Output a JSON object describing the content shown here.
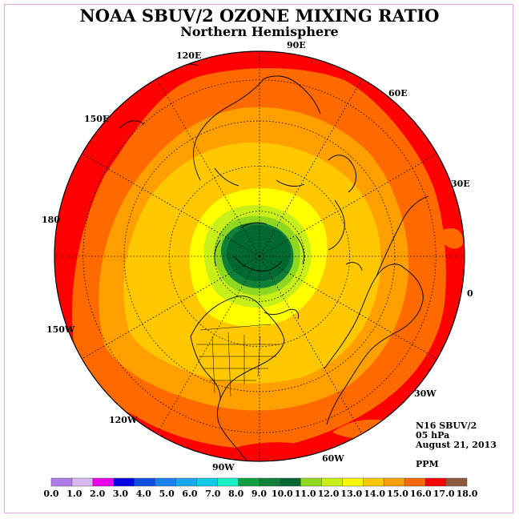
{
  "title": "NOAA SBUV/2 OZONE MIXING RATIO",
  "subtitle": "Northern Hemisphere",
  "longitude_labels": [
    {
      "text": "90E",
      "lon": 90
    },
    {
      "text": "60E",
      "lon": 60
    },
    {
      "text": "30E",
      "lon": 30
    },
    {
      "text": "0",
      "lon": 0
    },
    {
      "text": "30W",
      "lon": -30
    },
    {
      "text": "60W",
      "lon": -60
    },
    {
      "text": "90W",
      "lon": -90
    },
    {
      "text": "120W",
      "lon": -120
    },
    {
      "text": "150W",
      "lon": -150
    },
    {
      "text": "180",
      "lon": 180
    },
    {
      "text": "150E",
      "lon": 150
    },
    {
      "text": "120E",
      "lon": 120
    }
  ],
  "info": {
    "satellite": "N16 SBUV/2",
    "level": "05 hPa",
    "date": "August 21, 2013",
    "units": "PPM"
  },
  "colorbar": {
    "ticks": [
      "0.0",
      "1.0",
      "2.0",
      "3.0",
      "4.0",
      "5.0",
      "6.0",
      "7.0",
      "8.0",
      "9.0",
      "10.0",
      "11.0",
      "12.0",
      "13.0",
      "14.0",
      "15.0",
      "16.0",
      "17.0",
      "18.0"
    ],
    "colors": [
      "#b07be8",
      "#d8b8f0",
      "#e800e8",
      "#0000e0",
      "#1050e0",
      "#1a80f0",
      "#18a8f0",
      "#10c8e8",
      "#18f0c8",
      "#10a040",
      "#108038",
      "#006830",
      "#90d820",
      "#c8f018",
      "#f8f800",
      "#f8c800",
      "#f8a000",
      "#f86800",
      "#f80000",
      "#8b5a3c"
    ]
  },
  "map_colors": {
    "ring_17": "#ff0000",
    "ring_16": "#ff6a00",
    "ring_15": "#ffa000",
    "ring_14": "#ffc800",
    "ring_13": "#ffff00",
    "ring_12": "#c8f018",
    "ring_11": "#90d820",
    "ring_10": "#108038",
    "core_9": "#006830"
  }
}
